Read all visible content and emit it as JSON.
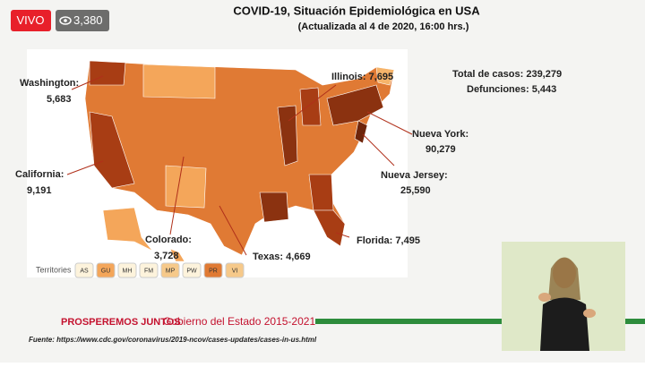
{
  "badge": {
    "live": "VIVO",
    "views": "3,380"
  },
  "header": {
    "title": "COVID-19, Situación Epidemiológica en USA",
    "subtitle": "(Actualizada al 4 de 2020, 16:00 hrs.)"
  },
  "totals": {
    "cases_label": "Total de casos:",
    "cases": "239,279",
    "deaths_label": "Defunciones:",
    "deaths": "5,443"
  },
  "labels": [
    {
      "name": "Washington:",
      "value": "5,683"
    },
    {
      "name": "California:",
      "value": "9,191"
    },
    {
      "name": "Colorado:",
      "value": "3,728"
    },
    {
      "name": "Texas:",
      "value": "4,669"
    },
    {
      "name": "Florida:",
      "value": "7,495"
    },
    {
      "name": "Nueva Jersey:",
      "value": "25,590"
    },
    {
      "name": "Nueva York:",
      "value": "90,279"
    },
    {
      "name": "Illinois:",
      "value": "7,695"
    }
  ],
  "territories": {
    "label": "Territories",
    "items": [
      "AS",
      "GU",
      "MH",
      "FM",
      "MP",
      "PW",
      "PR",
      "VI"
    ]
  },
  "footer": {
    "brand": "PROSPEREMOS JUNTOS",
    "government": "Gobierno del Estado 2015-2021",
    "source": "Fuente: https://www.cdc.gov/coronavirus/2019-ncov/cases-updates/cases-in-us.html"
  }
}
